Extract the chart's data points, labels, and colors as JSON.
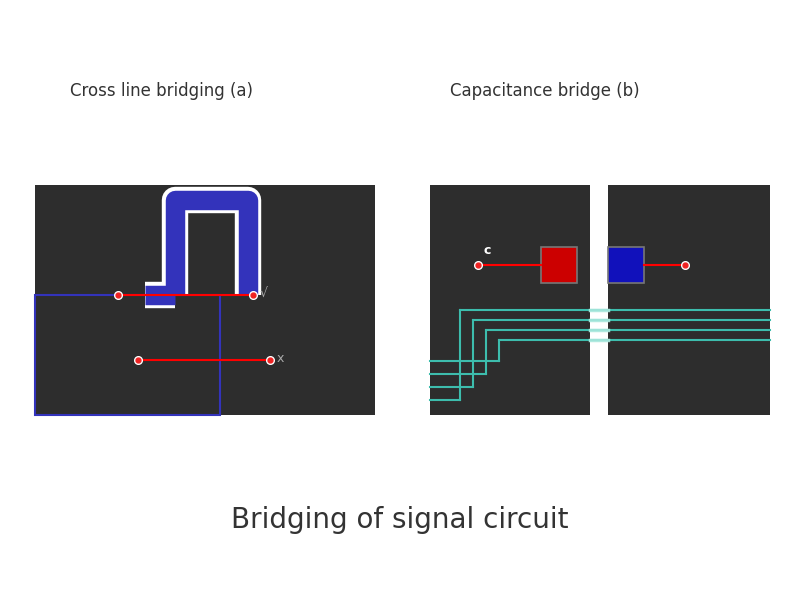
{
  "title": "Bridging of signal circuit",
  "title_fontsize": 20,
  "title_color": "#333333",
  "bg_color": "#ffffff",
  "panel_bg": "#2d2d2d",
  "label_a": "Cross line bridging (a)",
  "label_b": "Capacitance bridge (b)",
  "label_fontsize": 12,
  "blue_outline": "#3333bb",
  "white_outline": "#ffffff",
  "teal_line": "#3dbdad",
  "teal_light": "#aae8dd",
  "red_color": "#cc0000",
  "blue_color": "#1111bb",
  "red_dot_outer": "#ffffff",
  "red_dot_inner": "#ee2222",
  "check_color": "#aaaaaa",
  "x_color": "#aaaaaa",
  "gray_border": "#777777"
}
